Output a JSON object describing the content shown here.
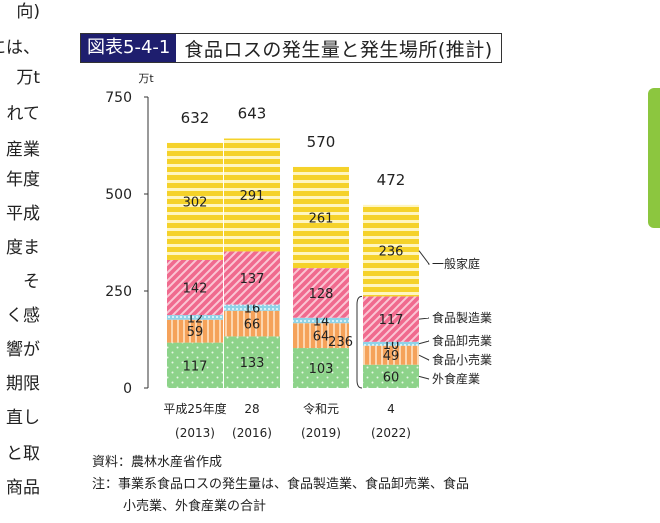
{
  "side_text": [
    "向)",
    "には、",
    "万t",
    "れて",
    "産業",
    "年度",
    "平成",
    "度ま",
    "そ",
    "く感",
    "響が",
    "期限",
    "直し",
    "と取",
    "商品"
  ],
  "title": {
    "number": "図表5-4-1",
    "text": "食品ロスの発生量と発生場所(推計)"
  },
  "colors": {
    "household": "#f5d22a",
    "manufacturing": "#f06a8e",
    "wholesale": "#8fd3e8",
    "retail": "#f5a25a",
    "food_service": "#8dd38a"
  },
  "chart_data": {
    "type": "bar",
    "stacked": true,
    "unit": "万t",
    "ylim": [
      0,
      750
    ],
    "yticks": [
      0,
      250,
      500,
      750
    ],
    "categories": [
      "平成25年度",
      "28",
      "令和元",
      "4"
    ],
    "category_years": [
      "(2013)",
      "(2016)",
      "(2019)",
      "(2022)"
    ],
    "totals": [
      632,
      643,
      570,
      472
    ],
    "series": [
      {
        "name": "外食産業",
        "key": "food_service",
        "values": [
          117,
          133,
          103,
          60
        ]
      },
      {
        "name": "食品小売業",
        "key": "retail",
        "values": [
          59,
          66,
          64,
          49
        ]
      },
      {
        "name": "食品卸売業",
        "key": "wholesale",
        "values": [
          12,
          16,
          14,
          10
        ]
      },
      {
        "name": "食品製造業",
        "key": "manufacturing",
        "values": [
          142,
          137,
          128,
          117
        ]
      },
      {
        "name": "一般家庭",
        "key": "household",
        "values": [
          302,
          291,
          261,
          236
        ]
      }
    ],
    "business_total_label": "236"
  },
  "notes": {
    "source": "資料：農林水産省作成",
    "note_line1": "注：事業系食品ロスの発生量は、食品製造業、食品卸売業、食品",
    "note_line2": "小売業、外食産業の合計"
  }
}
